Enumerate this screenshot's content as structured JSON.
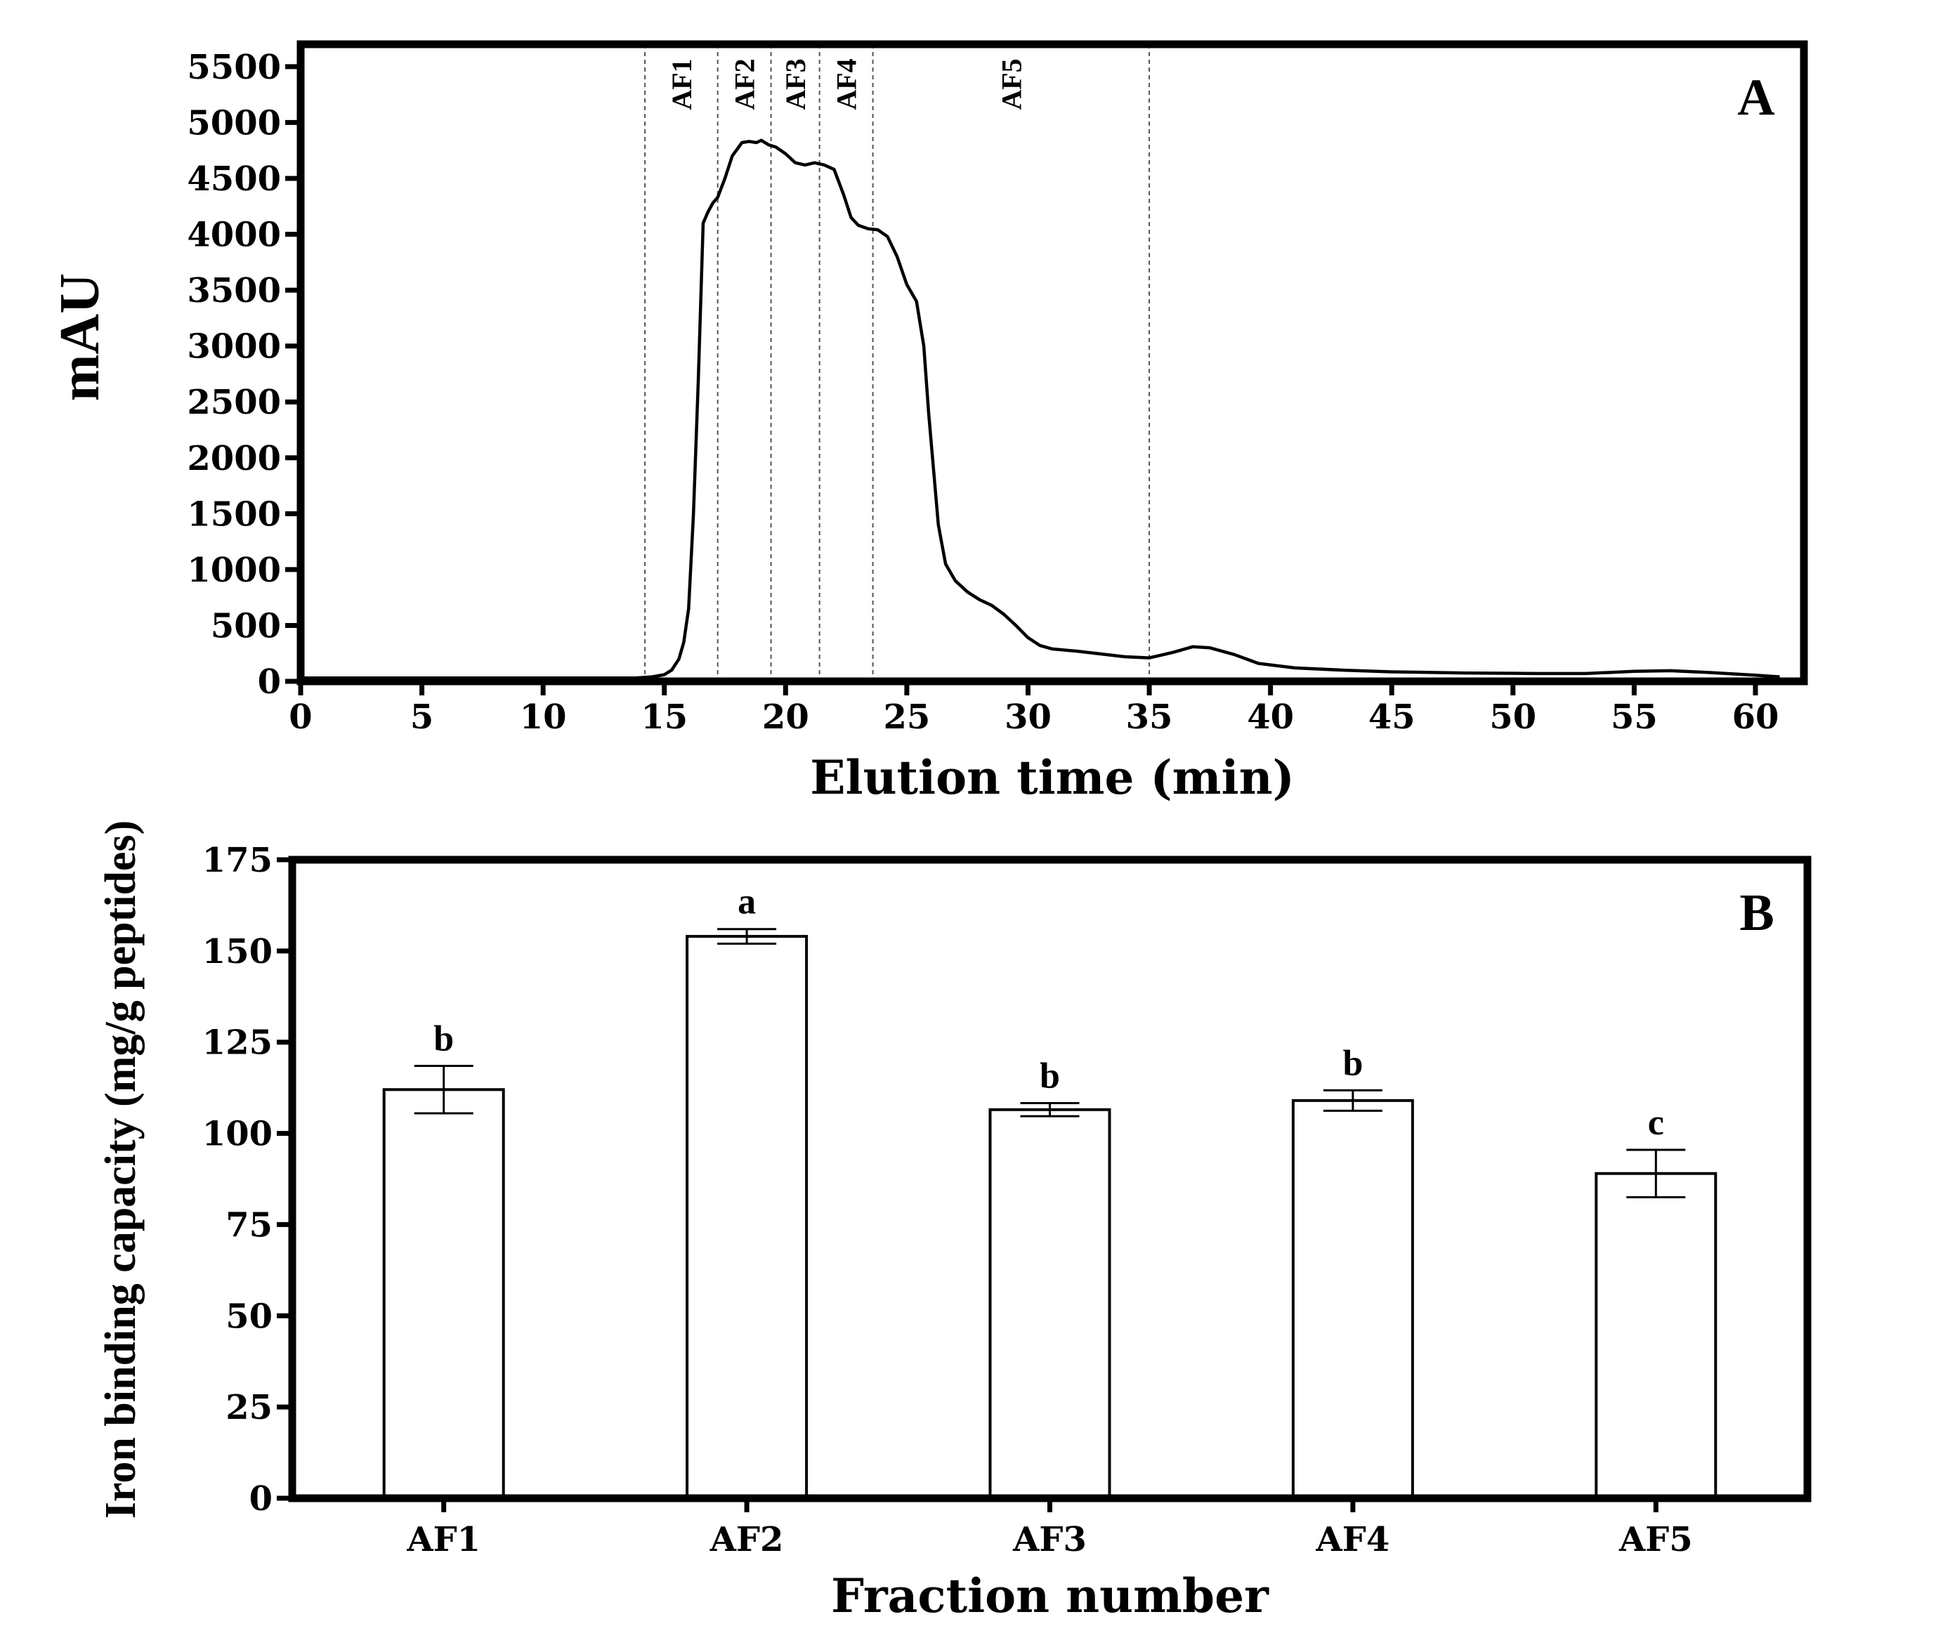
{
  "chart_data": [
    {
      "type": "line",
      "panel_label": "A",
      "xlabel": "Elution time (min)",
      "ylabel": "mAU",
      "xlim": [
        0,
        62
      ],
      "ylim": [
        0,
        5700
      ],
      "xticks": [
        0,
        5,
        10,
        15,
        20,
        25,
        30,
        35,
        40,
        45,
        50,
        55,
        60
      ],
      "yticks": [
        0,
        500,
        1000,
        1500,
        2000,
        2500,
        3000,
        3500,
        4000,
        4500,
        5000,
        5500
      ],
      "grid": false,
      "fractions": [
        {
          "name": "AF1",
          "start": 14.2,
          "end": 17.2
        },
        {
          "name": "AF2",
          "start": 17.2,
          "end": 19.4
        },
        {
          "name": "AF3",
          "start": 19.4,
          "end": 21.4
        },
        {
          "name": "AF4",
          "start": 21.4,
          "end": 23.6
        },
        {
          "name": "AF5",
          "start": 23.6,
          "end": 35.0
        }
      ],
      "series": [
        {
          "x": [
            0,
            13.8,
            14.5,
            15.0,
            15.3,
            15.6,
            15.8,
            16.0,
            16.2,
            16.4,
            16.6,
            16.8,
            17.0,
            17.2,
            17.5,
            17.8,
            18.2,
            18.5,
            18.8,
            19.0,
            19.3,
            19.6,
            20.0,
            20.4,
            20.8,
            21.2,
            21.6,
            22.0,
            22.4,
            22.7,
            23.0,
            23.4,
            23.8,
            24.2,
            24.6,
            25.0,
            25.4,
            25.7,
            25.9,
            26.1,
            26.3,
            26.6,
            27.0,
            27.5,
            28.0,
            28.5,
            29.0,
            29.5,
            30.0,
            30.5,
            31.0,
            32.0,
            33.0,
            34.0,
            35.0,
            36.0,
            36.8,
            37.5,
            38.5,
            39.5,
            41.0,
            43.0,
            45.0,
            48.0,
            51.0,
            53.0,
            55.0,
            56.5,
            58.0,
            60.0,
            61.0
          ],
          "y": [
            30,
            30,
            40,
            60,
            100,
            200,
            350,
            650,
            1500,
            2700,
            4100,
            4200,
            4280,
            4330,
            4500,
            4700,
            4820,
            4830,
            4820,
            4840,
            4800,
            4780,
            4720,
            4640,
            4620,
            4640,
            4620,
            4580,
            4350,
            4150,
            4080,
            4050,
            4040,
            3980,
            3800,
            3550,
            3400,
            3000,
            2400,
            1900,
            1400,
            1050,
            900,
            800,
            730,
            680,
            600,
            500,
            390,
            320,
            290,
            270,
            245,
            220,
            210,
            260,
            310,
            300,
            240,
            160,
            120,
            100,
            85,
            75,
            70,
            70,
            90,
            95,
            80,
            55,
            40
          ]
        }
      ]
    },
    {
      "type": "bar",
      "panel_label": "B",
      "xlabel": "Fraction number",
      "ylabel": "Iron binding capacity (mg/g peptides)",
      "categories": [
        "AF1",
        "AF2",
        "AF3",
        "AF4",
        "AF5"
      ],
      "values": [
        112,
        154,
        106.5,
        109,
        89
      ],
      "errors": [
        6.5,
        2.0,
        1.8,
        2.8,
        6.5
      ],
      "significance": [
        "b",
        "a",
        "b",
        "b",
        "c"
      ],
      "ylim": [
        0,
        175
      ],
      "yticks": [
        0,
        25,
        50,
        75,
        100,
        125,
        150,
        175
      ],
      "grid": false
    }
  ]
}
